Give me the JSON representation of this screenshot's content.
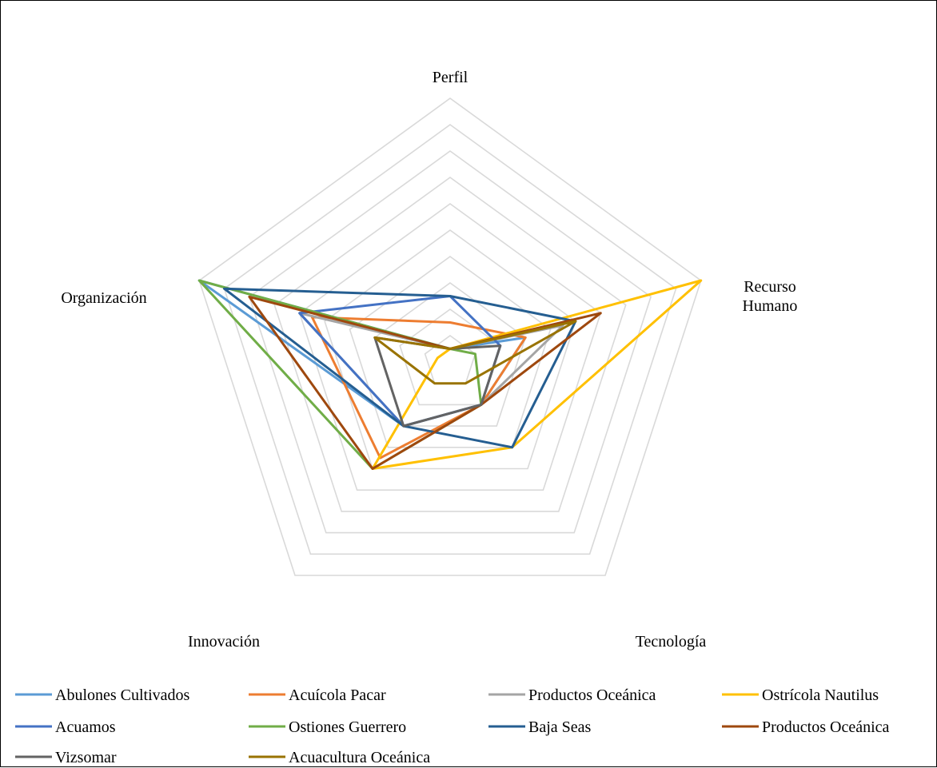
{
  "chart_data": {
    "type": "radar",
    "axes": [
      {
        "label_lines": [
          "Perfil"
        ]
      },
      {
        "label_lines": [
          "Recurso",
          "Humano"
        ]
      },
      {
        "label_lines": [
          "Tecnología"
        ]
      },
      {
        "label_lines": [
          "Innovación"
        ]
      },
      {
        "label_lines": [
          "Organización"
        ]
      }
    ],
    "rlim": [
      0,
      10
    ],
    "rings": 10,
    "grid": true,
    "legend_position": "bottom",
    "series": [
      {
        "name": "Abulones Cultivados",
        "color": "#5B9BD5",
        "values": [
          0.5,
          3.0,
          2.0,
          3.0,
          10.0
        ]
      },
      {
        "name": "Acuícola Pacar",
        "color": "#ED7D31",
        "values": [
          1.5,
          3.0,
          2.0,
          4.5,
          5.5
        ]
      },
      {
        "name": "Productos Oceánica",
        "color": "#A5A5A5",
        "values": [
          0.5,
          4.5,
          2.0,
          3.0,
          6.0
        ]
      },
      {
        "name": "Ostrícola Nautilus",
        "color": "#FFC000",
        "values": [
          0.5,
          10.0,
          4.0,
          5.0,
          0.5
        ]
      },
      {
        "name": "Acuamos",
        "color": "#4472C4",
        "values": [
          2.5,
          2.0,
          2.0,
          3.0,
          6.0
        ]
      },
      {
        "name": "Ostiones Guerrero",
        "color": "#70AD47",
        "values": [
          0.5,
          1.0,
          2.0,
          5.0,
          10.0
        ]
      },
      {
        "name": "Baja Seas",
        "color": "#255E91",
        "values": [
          2.5,
          5.0,
          4.0,
          3.0,
          9.0
        ]
      },
      {
        "name": "Productos Oceánica",
        "color": "#9E480E",
        "values": [
          0.5,
          6.0,
          2.0,
          5.0,
          8.0
        ]
      },
      {
        "name": "Vizsomar",
        "color": "#636363",
        "values": [
          0.5,
          2.0,
          2.0,
          3.0,
          3.0
        ]
      },
      {
        "name": "Acuacultura Oceánica",
        "color": "#997300",
        "values": [
          0.5,
          5.0,
          1.0,
          1.0,
          3.0
        ]
      }
    ]
  }
}
